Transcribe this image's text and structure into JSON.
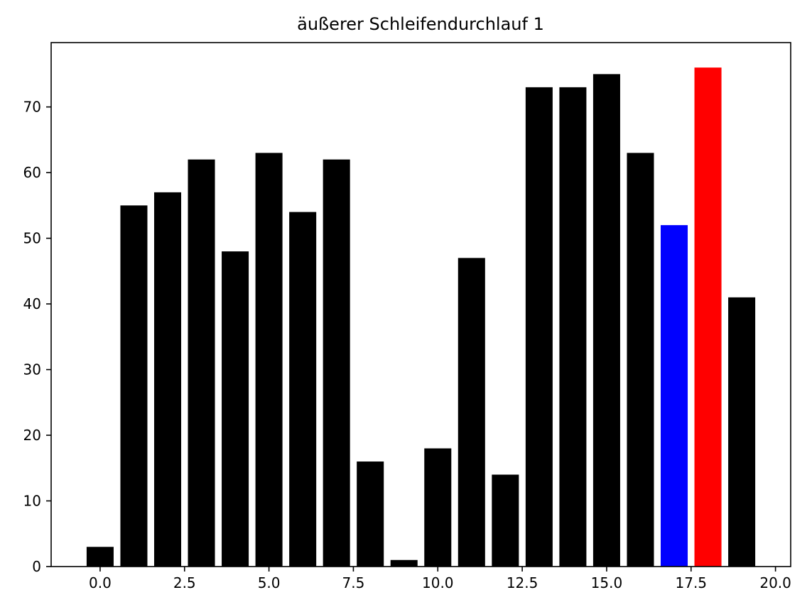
{
  "chart_data": {
    "type": "bar",
    "title": "äußerer Schleifendurchlauf 1",
    "xlabel": "",
    "ylabel": "",
    "x": [
      0,
      1,
      2,
      3,
      4,
      5,
      6,
      7,
      8,
      9,
      10,
      11,
      12,
      13,
      14,
      15,
      16,
      17,
      18,
      19
    ],
    "values": [
      3,
      55,
      57,
      62,
      48,
      63,
      54,
      62,
      16,
      1,
      18,
      47,
      14,
      73,
      73,
      75,
      63,
      52,
      76,
      41
    ],
    "colors": [
      "#000000",
      "#000000",
      "#000000",
      "#000000",
      "#000000",
      "#000000",
      "#000000",
      "#000000",
      "#000000",
      "#000000",
      "#000000",
      "#000000",
      "#000000",
      "#000000",
      "#000000",
      "#000000",
      "#000000",
      "#0000ff",
      "#ff0000",
      "#000000"
    ],
    "bar_width": 0.8,
    "xlim": [
      -1.45,
      20.45
    ],
    "ylim": [
      0,
      79.8
    ],
    "xticks": [
      0,
      2.5,
      5,
      7.5,
      10,
      12.5,
      15,
      17.5,
      20
    ],
    "xtick_labels": [
      "0.0",
      "2.5",
      "5.0",
      "7.5",
      "10.0",
      "12.5",
      "15.0",
      "17.5",
      "20.0"
    ],
    "yticks": [
      0,
      10,
      20,
      30,
      40,
      50,
      60,
      70
    ],
    "ytick_labels": [
      "0",
      "10",
      "20",
      "30",
      "40",
      "50",
      "60",
      "70"
    ],
    "grid": false,
    "legend": "none"
  }
}
